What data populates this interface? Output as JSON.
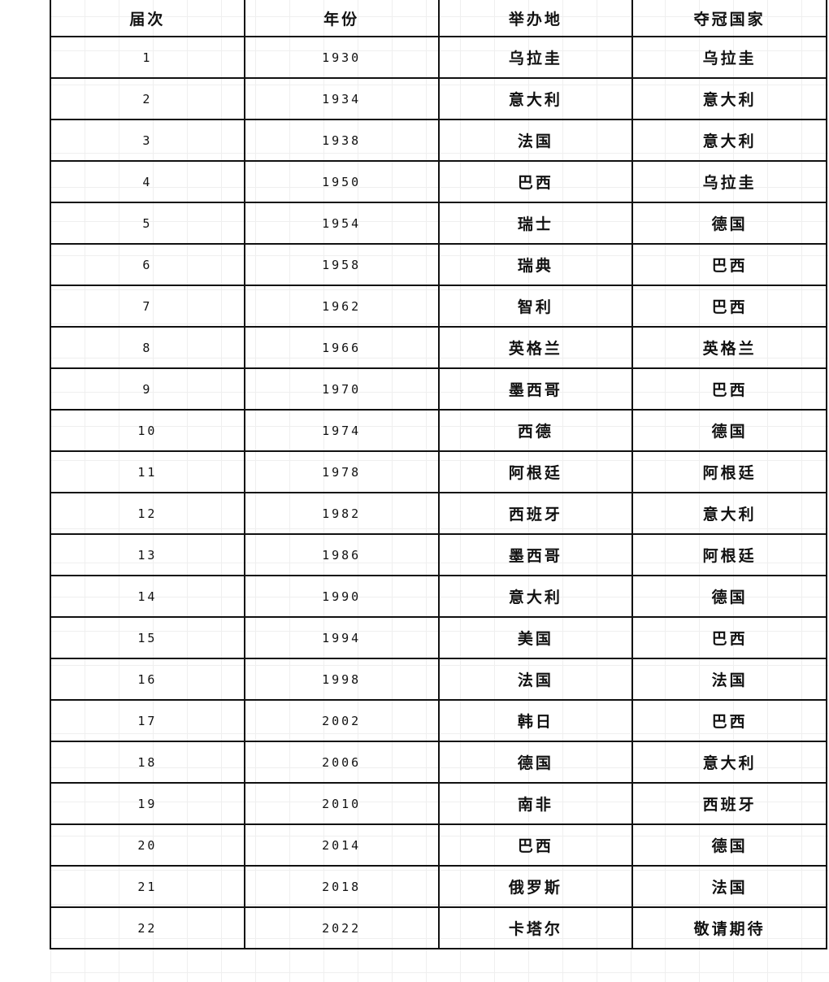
{
  "table": {
    "headers": [
      "届次",
      "年份",
      "举办地",
      "夺冠国家"
    ],
    "rows": [
      [
        "1",
        "1930",
        "乌拉圭",
        "乌拉圭"
      ],
      [
        "2",
        "1934",
        "意大利",
        "意大利"
      ],
      [
        "3",
        "1938",
        "法国",
        "意大利"
      ],
      [
        "4",
        "1950",
        "巴西",
        "乌拉圭"
      ],
      [
        "5",
        "1954",
        "瑞士",
        "德国"
      ],
      [
        "6",
        "1958",
        "瑞典",
        "巴西"
      ],
      [
        "7",
        "1962",
        "智利",
        "巴西"
      ],
      [
        "8",
        "1966",
        "英格兰",
        "英格兰"
      ],
      [
        "9",
        "1970",
        "墨西哥",
        "巴西"
      ],
      [
        "10",
        "1974",
        "西德",
        "德国"
      ],
      [
        "11",
        "1978",
        "阿根廷",
        "阿根廷"
      ],
      [
        "12",
        "1982",
        "西班牙",
        "意大利"
      ],
      [
        "13",
        "1986",
        "墨西哥",
        "阿根廷"
      ],
      [
        "14",
        "1990",
        "意大利",
        "德国"
      ],
      [
        "15",
        "1994",
        "美国",
        "巴西"
      ],
      [
        "16",
        "1998",
        "法国",
        "法国"
      ],
      [
        "17",
        "2002",
        "韩日",
        "巴西"
      ],
      [
        "18",
        "2006",
        "德国",
        "意大利"
      ],
      [
        "19",
        "2010",
        "南非",
        "西班牙"
      ],
      [
        "20",
        "2014",
        "巴西",
        "德国"
      ],
      [
        "21",
        "2018",
        "俄罗斯",
        "法国"
      ],
      [
        "22",
        "2022",
        "卡塔尔",
        "敬请期待"
      ]
    ]
  }
}
